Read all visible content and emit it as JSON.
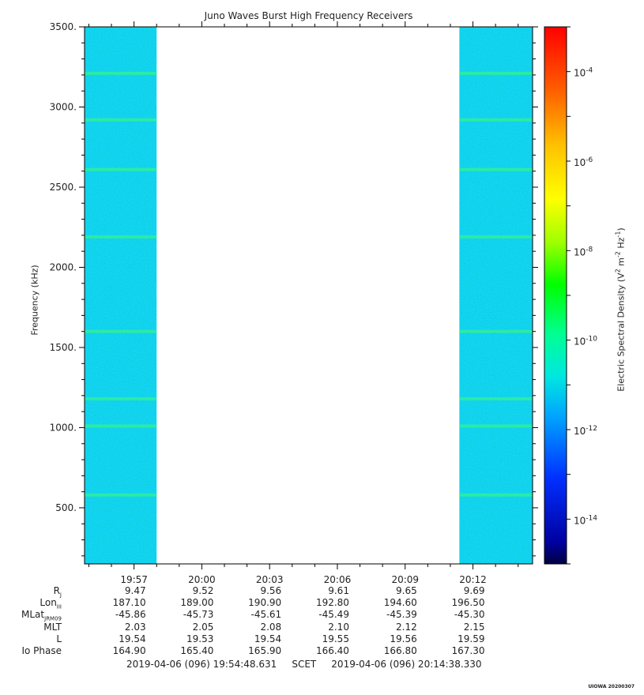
{
  "chart_data": {
    "type": "heatmap",
    "title": "Juno Waves Burst High Frequency Receivers",
    "ylabel": "Frequency (kHz)",
    "colorbar_label_html": "Electric Spectral Density (V<sup>2</sup> m<sup>-2</sup> Hz<sup>-1</sup>)",
    "colorbar_scale": "log",
    "colorbar_range": [
      1e-15,
      0.001
    ],
    "colorbar_ticks": [
      {
        "exp": -4,
        "label": "-4"
      },
      {
        "exp": -6,
        "label": "-6"
      },
      {
        "exp": -8,
        "label": "-8"
      },
      {
        "exp": -10,
        "label": "-10"
      },
      {
        "exp": -12,
        "label": "-12"
      },
      {
        "exp": -14,
        "label": "-14"
      }
    ],
    "ylim": [
      150,
      3500
    ],
    "yticks": [
      {
        "value": 500,
        "label": "500."
      },
      {
        "value": 1000,
        "label": "1000."
      },
      {
        "value": 1500,
        "label": "1500."
      },
      {
        "value": 2000,
        "label": "2000."
      },
      {
        "value": 2500,
        "label": "2500."
      },
      {
        "value": 3000,
        "label": "3000."
      },
      {
        "value": 3500,
        "label": "3500."
      }
    ],
    "xlim_minutes": [
      1194.81,
      1214.64
    ],
    "xticks": [
      {
        "minutes": 1197,
        "label": "19:57"
      },
      {
        "minutes": 1200,
        "label": "20:00"
      },
      {
        "minutes": 1203,
        "label": "20:03"
      },
      {
        "minutes": 1206,
        "label": "20:06"
      },
      {
        "minutes": 1209,
        "label": "20:09"
      },
      {
        "minutes": 1212,
        "label": "20:12"
      }
    ],
    "data_blocks_minutes": [
      [
        1194.81,
        1198.0
      ],
      [
        1211.4,
        1214.64
      ]
    ],
    "background_level_exp": -12,
    "emission_lines_khz": [
      580,
      1010,
      1180,
      1600,
      2190,
      2610,
      2920,
      3210
    ],
    "ephemeris": {
      "labels": [
        {
          "main": "R",
          "sub": "J"
        },
        {
          "main": "Lon",
          "sub": "III"
        },
        {
          "main": "MLat",
          "sub": "JRM09"
        },
        {
          "main": "MLT",
          "sub": ""
        },
        {
          "main": "L",
          "sub": ""
        },
        {
          "main": "Io Phase",
          "sub": ""
        }
      ],
      "rows": [
        [
          "9.47",
          "9.52",
          "9.56",
          "9.61",
          "9.65",
          "9.69"
        ],
        [
          "187.10",
          "189.00",
          "190.90",
          "192.80",
          "194.60",
          "196.50"
        ],
        [
          "-45.86",
          "-45.73",
          "-45.61",
          "-45.49",
          "-45.39",
          "-45.30"
        ],
        [
          "2.03",
          "2.05",
          "2.08",
          "2.10",
          "2.12",
          "2.15"
        ],
        [
          "19.54",
          "19.53",
          "19.54",
          "19.55",
          "19.56",
          "19.59"
        ],
        [
          "164.90",
          "165.40",
          "165.90",
          "166.40",
          "166.80",
          "167.30"
        ]
      ]
    },
    "scet_text": "2019-04-06 (096) 19:54:48.631     SCET     2019-04-06 (096) 20:14:38.330",
    "credit": "UIOWA 20200307"
  }
}
